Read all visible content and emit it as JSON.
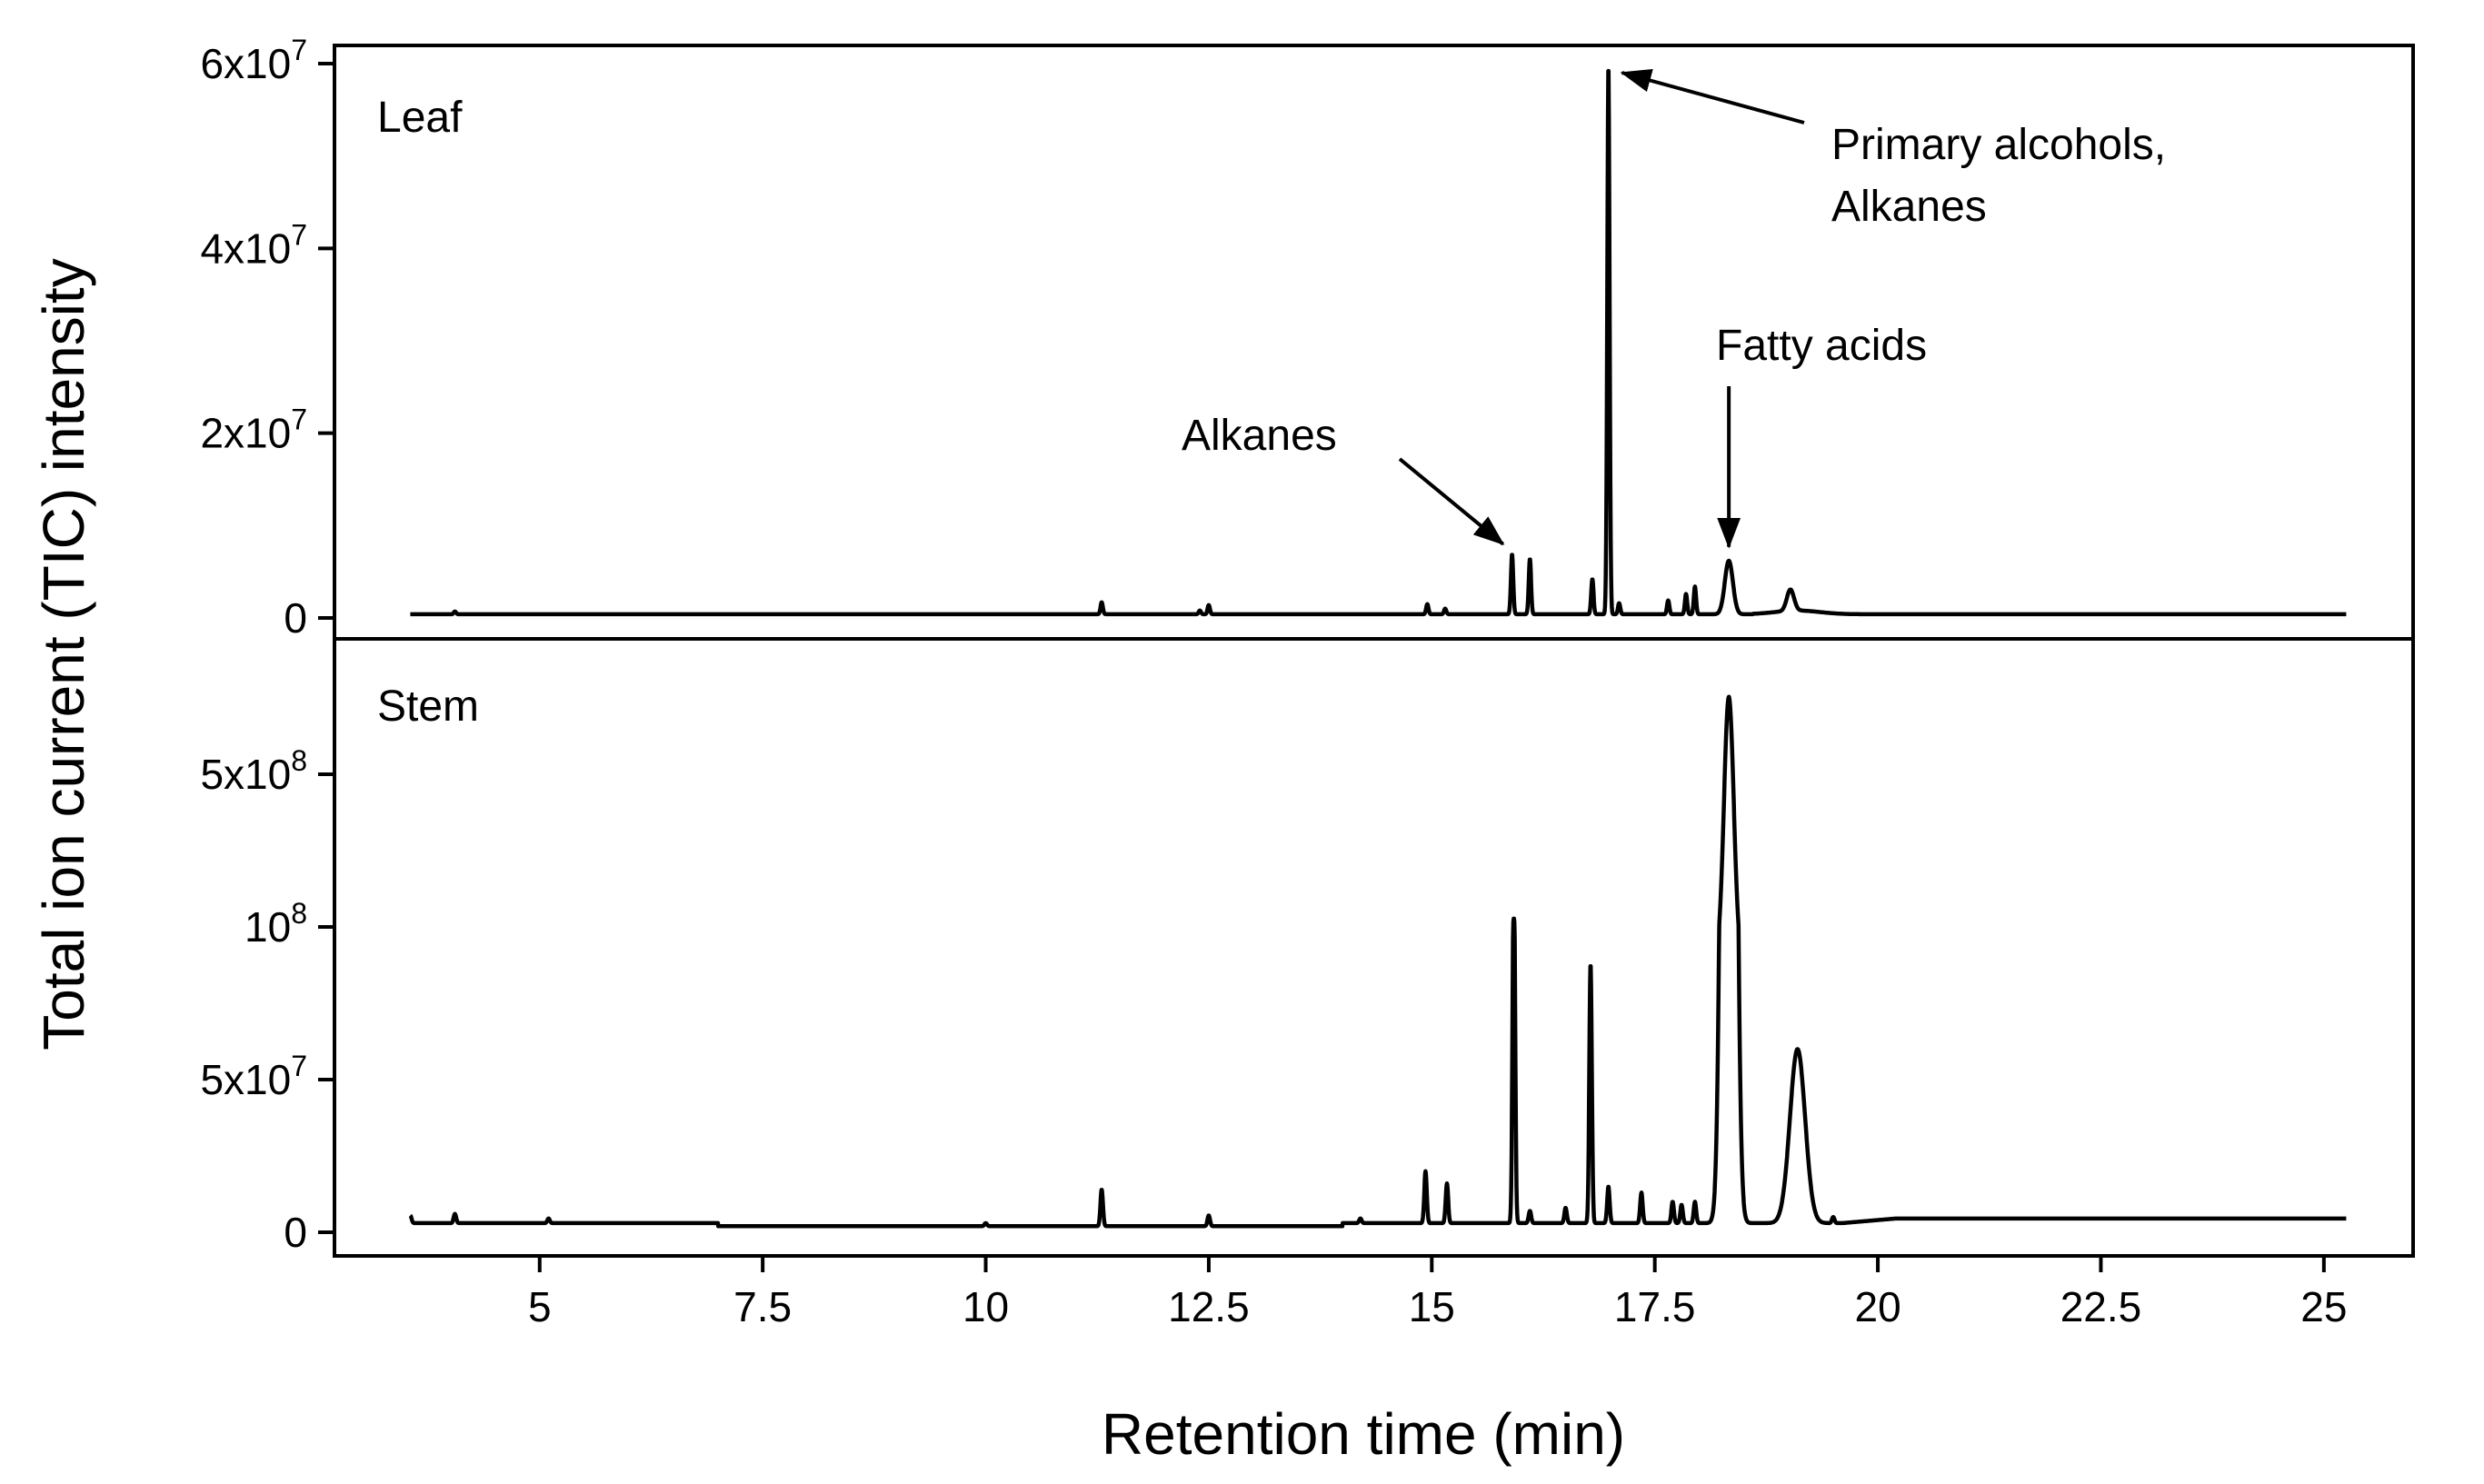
{
  "chart_data": {
    "type": "line",
    "xlabel": "Retention time (min)",
    "ylabel": "Total ion current (TIC) intensity",
    "xlim": [
      2.7,
      26.0
    ],
    "xticks": [
      {
        "value": 5,
        "label": "5"
      },
      {
        "value": 7.5,
        "label": "7.5"
      },
      {
        "value": 10,
        "label": "10"
      },
      {
        "value": 12.5,
        "label": "12.5"
      },
      {
        "value": 15,
        "label": "15"
      },
      {
        "value": 17.5,
        "label": "17.5"
      },
      {
        "value": 20,
        "label": "20"
      },
      {
        "value": 22.5,
        "label": "22.5"
      },
      {
        "value": 25,
        "label": "25"
      }
    ],
    "panels": [
      {
        "label": "Leaf",
        "baseline": 400000.0,
        "y_scale": "linear",
        "ylim": [
          -2500000.0,
          62000000.0
        ],
        "yticks": [
          {
            "value": 0,
            "base": "0",
            "exp": ""
          },
          {
            "value": 20000000,
            "base": "2x10",
            "exp": "7"
          },
          {
            "value": 40000000,
            "base": "4x10",
            "exp": "7"
          },
          {
            "value": 60000000,
            "base": "6x10",
            "exp": "7"
          }
        ],
        "peaks": [
          {
            "rt": 4.05,
            "height": 300000.0
          },
          {
            "rt": 11.3,
            "height": 1300000.0
          },
          {
            "rt": 12.4,
            "height": 400000.0
          },
          {
            "rt": 12.5,
            "height": 1000000.0
          },
          {
            "rt": 14.95,
            "height": 1100000.0
          },
          {
            "rt": 15.15,
            "height": 600000.0
          },
          {
            "rt": 15.9,
            "height": 6500000.0
          },
          {
            "rt": 16.1,
            "height": 6000000.0
          },
          {
            "rt": 16.8,
            "height": 3800000.0
          },
          {
            "rt": 16.98,
            "height": 59500000.0
          },
          {
            "rt": 17.1,
            "height": 1200000.0
          },
          {
            "rt": 17.65,
            "height": 1500000.0
          },
          {
            "rt": 17.85,
            "height": 2200000.0
          },
          {
            "rt": 17.95,
            "height": 3000000.0
          },
          {
            "rt": 18.33,
            "height": 5800000.0
          },
          {
            "rt": 19.02,
            "height": 2300000.0
          }
        ],
        "annotations": [
          {
            "text": "Primary alcohols,",
            "text2": "Alkanes",
            "rt": 17.05,
            "value": 58000000.0
          },
          {
            "text": "Alkanes",
            "rt": 15.85,
            "value": 8000000.0
          },
          {
            "text": "Fatty acids",
            "rt": 18.33,
            "value": 7500000.0
          }
        ]
      },
      {
        "label": "Stem",
        "baseline": 3000000.0,
        "y_scale": "piecewise (linear below 1x10^8, compressed above)",
        "ylim": [
          -5000000.0,
          730000000.0
        ],
        "yticks": [
          {
            "value": 0,
            "base": "0",
            "exp": ""
          },
          {
            "value": 50000000,
            "base": "5x10",
            "exp": "7"
          },
          {
            "value": 100000000,
            "base": "10",
            "exp": "8"
          },
          {
            "value": 500000000,
            "base": "5x10",
            "exp": "8"
          }
        ],
        "peaks": [
          {
            "rt": 3.55,
            "height": 2500000.0
          },
          {
            "rt": 4.05,
            "height": 3000000.0
          },
          {
            "rt": 5.1,
            "height": 1500000.0
          },
          {
            "rt": 10.0,
            "height": 1000000.0
          },
          {
            "rt": 11.3,
            "height": 12000000.0
          },
          {
            "rt": 12.5,
            "height": 3500000.0
          },
          {
            "rt": 14.2,
            "height": 1500000.0
          },
          {
            "rt": 14.93,
            "height": 17000000.0
          },
          {
            "rt": 15.17,
            "height": 13000000.0
          },
          {
            "rt": 15.92,
            "height": 120000000.0
          },
          {
            "rt": 16.1,
            "height": 4000000.0
          },
          {
            "rt": 16.5,
            "height": 5000000.0
          },
          {
            "rt": 16.78,
            "height": 85000000.0
          },
          {
            "rt": 16.98,
            "height": 12000000.0
          },
          {
            "rt": 17.35,
            "height": 10000000.0
          },
          {
            "rt": 17.7,
            "height": 7000000.0
          },
          {
            "rt": 17.8,
            "height": 6000000.0
          },
          {
            "rt": 17.95,
            "height": 7000000.0
          },
          {
            "rt": 18.33,
            "height": 700000000.0
          },
          {
            "rt": 19.1,
            "height": 57000000.0
          },
          {
            "rt": 19.5,
            "height": 2000000.0
          }
        ]
      }
    ]
  }
}
